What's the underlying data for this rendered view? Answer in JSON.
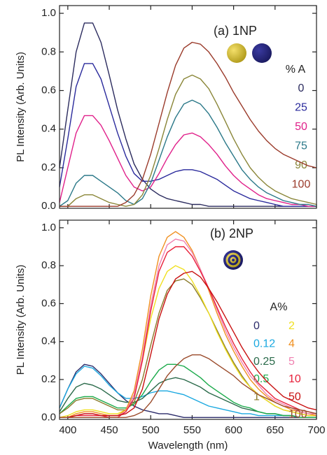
{
  "chart_data": [
    {
      "type": "line",
      "annotation": "(a) 1NP",
      "ylabel": "PL Intensity (Arb. Units)",
      "legend_title": "% A",
      "xtick_labels": false,
      "xlim": [
        390,
        700
      ],
      "ylim": [
        -0.01,
        1.04
      ],
      "xticks": [
        400,
        450,
        500,
        550,
        600,
        650,
        700
      ],
      "yticks": [
        {
          "value": 0,
          "label": "0.0"
        },
        0.2,
        0.4,
        0.6,
        0.8,
        {
          "value": 1,
          "label": "1.0"
        }
      ],
      "x": [
        390,
        400,
        410,
        420,
        430,
        440,
        450,
        460,
        470,
        480,
        490,
        500,
        510,
        520,
        530,
        540,
        550,
        560,
        570,
        580,
        590,
        600,
        610,
        620,
        630,
        640,
        650,
        660,
        670,
        680,
        690,
        700
      ],
      "series": [
        {
          "name": "0",
          "color": "#2b2b5e",
          "values": [
            0.2,
            0.5,
            0.8,
            0.95,
            0.95,
            0.85,
            0.68,
            0.5,
            0.35,
            0.22,
            0.14,
            0.09,
            0.06,
            0.04,
            0.03,
            0.02,
            0.01,
            0.01,
            0,
            0,
            0,
            0,
            0,
            0,
            0,
            0,
            0,
            0,
            0,
            0,
            0,
            0
          ]
        },
        {
          "name": "25",
          "color": "#2a2a9c",
          "values": [
            0.1,
            0.35,
            0.62,
            0.74,
            0.74,
            0.66,
            0.52,
            0.38,
            0.26,
            0.17,
            0.13,
            0.13,
            0.14,
            0.16,
            0.18,
            0.19,
            0.19,
            0.18,
            0.16,
            0.14,
            0.11,
            0.08,
            0.06,
            0.04,
            0.03,
            0.02,
            0.01,
            0,
            0,
            0,
            0,
            0
          ]
        },
        {
          "name": "50",
          "color": "#e0208a",
          "values": [
            0.02,
            0.2,
            0.38,
            0.47,
            0.47,
            0.42,
            0.34,
            0.25,
            0.16,
            0.1,
            0.08,
            0.1,
            0.17,
            0.25,
            0.32,
            0.37,
            0.38,
            0.36,
            0.32,
            0.27,
            0.21,
            0.16,
            0.12,
            0.09,
            0.06,
            0.04,
            0.03,
            0.02,
            0.01,
            0.01,
            0,
            0
          ]
        },
        {
          "name": "75",
          "color": "#2a7888",
          "values": [
            0,
            0.03,
            0.12,
            0.16,
            0.16,
            0.13,
            0.1,
            0.07,
            0.03,
            0.01,
            0.04,
            0.12,
            0.24,
            0.36,
            0.46,
            0.53,
            0.55,
            0.53,
            0.48,
            0.41,
            0.33,
            0.26,
            0.19,
            0.14,
            0.1,
            0.07,
            0.05,
            0.03,
            0.02,
            0.01,
            0.01,
            0
          ]
        },
        {
          "name": "90",
          "color": "#8a8638",
          "values": [
            0,
            0,
            0.04,
            0.06,
            0.06,
            0.04,
            0.02,
            0.01,
            0,
            0.01,
            0.06,
            0.16,
            0.3,
            0.45,
            0.58,
            0.66,
            0.68,
            0.66,
            0.61,
            0.53,
            0.44,
            0.35,
            0.27,
            0.2,
            0.15,
            0.11,
            0.08,
            0.06,
            0.04,
            0.03,
            0.02,
            0.01
          ]
        },
        {
          "name": "100",
          "color": "#9a3a2a",
          "values": [
            0,
            0,
            0,
            0,
            0,
            0,
            0,
            0,
            0.02,
            0.06,
            0.14,
            0.27,
            0.43,
            0.59,
            0.73,
            0.82,
            0.85,
            0.84,
            0.8,
            0.74,
            0.67,
            0.59,
            0.52,
            0.45,
            0.39,
            0.34,
            0.3,
            0.27,
            0.25,
            0.23,
            0.21,
            0.2
          ]
        }
      ]
    },
    {
      "type": "line",
      "annotation": "(b) 2NP",
      "ylabel": "PL Intensity (Arb. Units)",
      "xlabel": "Wavelength (nm)",
      "legend_title": "A%",
      "xtick_labels": true,
      "xlim": [
        390,
        700
      ],
      "ylim": [
        -0.01,
        1.04
      ],
      "xticks": [
        400,
        450,
        500,
        550,
        600,
        650,
        700
      ],
      "yticks": [
        {
          "value": 0,
          "label": "0.0"
        },
        0.2,
        0.4,
        0.6,
        0.8,
        {
          "value": 1,
          "label": "1.0"
        }
      ],
      "x": [
        390,
        400,
        410,
        420,
        430,
        440,
        450,
        460,
        470,
        480,
        490,
        500,
        510,
        520,
        530,
        540,
        550,
        560,
        570,
        580,
        590,
        600,
        610,
        620,
        630,
        640,
        650,
        660,
        670,
        680,
        690,
        700
      ],
      "series": [
        {
          "name": "0",
          "color": "#2b2b6a",
          "values": [
            0.05,
            0.15,
            0.24,
            0.28,
            0.27,
            0.23,
            0.18,
            0.13,
            0.09,
            0.06,
            0.04,
            0.03,
            0.02,
            0.02,
            0.01,
            0,
            0,
            0,
            0,
            0,
            0,
            0,
            0,
            0,
            0,
            0,
            0,
            0,
            0,
            0,
            0,
            0
          ]
        },
        {
          "name": "0.12",
          "color": "#1aa8e0",
          "values": [
            0.05,
            0.15,
            0.23,
            0.27,
            0.26,
            0.22,
            0.17,
            0.13,
            0.1,
            0.1,
            0.11,
            0.13,
            0.14,
            0.14,
            0.13,
            0.12,
            0.1,
            0.08,
            0.06,
            0.05,
            0.04,
            0.03,
            0.02,
            0.02,
            0.01,
            0.01,
            0.01,
            0.01,
            0.01,
            0,
            0,
            0
          ]
        },
        {
          "name": "0.25",
          "color": "#2a6a4a",
          "values": [
            0.03,
            0.1,
            0.16,
            0.18,
            0.17,
            0.15,
            0.12,
            0.09,
            0.08,
            0.08,
            0.1,
            0.14,
            0.18,
            0.2,
            0.21,
            0.2,
            0.18,
            0.16,
            0.13,
            0.11,
            0.09,
            0.07,
            0.05,
            0.04,
            0.03,
            0.02,
            0.02,
            0.01,
            0.01,
            0,
            0,
            0
          ]
        },
        {
          "name": "0.5",
          "color": "#1aaa4a",
          "values": [
            0.02,
            0.06,
            0.1,
            0.11,
            0.11,
            0.09,
            0.07,
            0.05,
            0.05,
            0.07,
            0.12,
            0.19,
            0.25,
            0.28,
            0.28,
            0.27,
            0.24,
            0.21,
            0.17,
            0.14,
            0.11,
            0.08,
            0.06,
            0.05,
            0.03,
            0.02,
            0.02,
            0.01,
            0.01,
            0,
            0,
            0
          ]
        },
        {
          "name": "1",
          "color": "#8a7a2a",
          "values": [
            0.02,
            0.05,
            0.09,
            0.1,
            0.1,
            0.08,
            0.06,
            0.04,
            0.04,
            0.08,
            0.2,
            0.38,
            0.55,
            0.67,
            0.72,
            0.73,
            0.7,
            0.63,
            0.55,
            0.46,
            0.37,
            0.29,
            0.22,
            0.16,
            0.12,
            0.09,
            0.06,
            0.04,
            0.03,
            0.02,
            0.01,
            0.01
          ]
        },
        {
          "name": "2",
          "color": "#f0e020",
          "values": [
            0,
            0.01,
            0.03,
            0.04,
            0.04,
            0.03,
            0.02,
            0.02,
            0.04,
            0.12,
            0.3,
            0.52,
            0.68,
            0.77,
            0.8,
            0.78,
            0.72,
            0.64,
            0.55,
            0.45,
            0.36,
            0.28,
            0.21,
            0.16,
            0.12,
            0.09,
            0.06,
            0.04,
            0.03,
            0.02,
            0.01,
            0.01
          ]
        },
        {
          "name": "4",
          "color": "#f09020",
          "values": [
            0,
            0,
            0.02,
            0.03,
            0.03,
            0.02,
            0.01,
            0.01,
            0.04,
            0.14,
            0.36,
            0.64,
            0.85,
            0.95,
            0.98,
            0.95,
            0.88,
            0.78,
            0.67,
            0.55,
            0.44,
            0.35,
            0.27,
            0.2,
            0.15,
            0.11,
            0.08,
            0.06,
            0.04,
            0.03,
            0.02,
            0.01
          ]
        },
        {
          "name": "5",
          "color": "#f080b0",
          "values": [
            0,
            0,
            0.01,
            0.02,
            0.02,
            0.01,
            0.01,
            0.01,
            0.03,
            0.12,
            0.32,
            0.59,
            0.8,
            0.91,
            0.94,
            0.93,
            0.87,
            0.78,
            0.68,
            0.57,
            0.46,
            0.37,
            0.29,
            0.22,
            0.17,
            0.12,
            0.09,
            0.07,
            0.05,
            0.03,
            0.02,
            0.02
          ]
        },
        {
          "name": "10",
          "color": "#e8203a",
          "values": [
            0,
            0,
            0.01,
            0.01,
            0.01,
            0.01,
            0,
            0,
            0.03,
            0.1,
            0.3,
            0.56,
            0.77,
            0.87,
            0.9,
            0.9,
            0.85,
            0.77,
            0.68,
            0.58,
            0.48,
            0.39,
            0.31,
            0.24,
            0.18,
            0.14,
            0.1,
            0.08,
            0.06,
            0.04,
            0.03,
            0.02
          ]
        },
        {
          "name": "50",
          "color": "#c81010",
          "values": [
            0,
            0,
            0.01,
            0.02,
            0.02,
            0.01,
            0.01,
            0.01,
            0.02,
            0.05,
            0.15,
            0.33,
            0.52,
            0.65,
            0.73,
            0.76,
            0.77,
            0.74,
            0.68,
            0.61,
            0.53,
            0.45,
            0.37,
            0.3,
            0.24,
            0.19,
            0.15,
            0.11,
            0.09,
            0.07,
            0.05,
            0.04
          ]
        },
        {
          "name": "100",
          "color": "#9a4a2a",
          "values": [
            0,
            0,
            0,
            0,
            0,
            0,
            0,
            0,
            0,
            0.01,
            0.03,
            0.08,
            0.15,
            0.22,
            0.27,
            0.31,
            0.33,
            0.33,
            0.31,
            0.28,
            0.25,
            0.22,
            0.18,
            0.15,
            0.12,
            0.1,
            0.08,
            0.06,
            0.05,
            0.04,
            0.03,
            0.02
          ]
        }
      ]
    }
  ]
}
